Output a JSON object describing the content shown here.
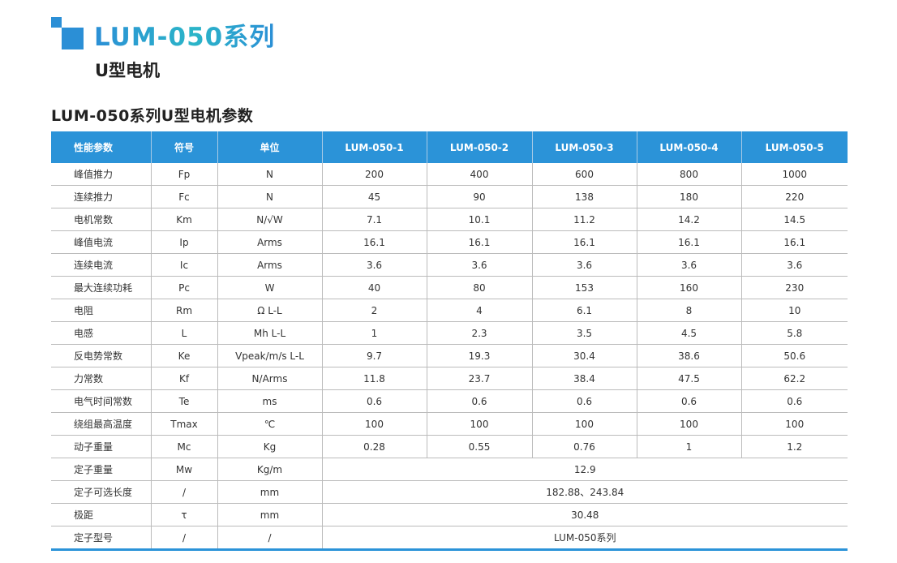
{
  "header": {
    "title": "LUM-050系列",
    "subtitle": "U型电机"
  },
  "section_title": "LUM-050系列U型电机参数",
  "colors": {
    "accent": "#2b93d8",
    "title_gradient_end": "#2bb5c8"
  },
  "table": {
    "columns": [
      "性能参数",
      "符号",
      "单位",
      "LUM-050-1",
      "LUM-050-2",
      "LUM-050-3",
      "LUM-050-4",
      "LUM-050-5"
    ],
    "rows": [
      [
        "峰值推力",
        "Fp",
        "N",
        "200",
        "400",
        "600",
        "800",
        "1000"
      ],
      [
        "连续推力",
        "Fc",
        "N",
        "45",
        "90",
        "138",
        "180",
        "220"
      ],
      [
        "电机常数",
        "Km",
        "N/√W",
        "7.1",
        "10.1",
        "11.2",
        "14.2",
        "14.5"
      ],
      [
        "峰值电流",
        "Ip",
        "Arms",
        "16.1",
        "16.1",
        "16.1",
        "16.1",
        "16.1"
      ],
      [
        "连续电流",
        "Ic",
        "Arms",
        "3.6",
        "3.6",
        "3.6",
        "3.6",
        "3.6"
      ],
      [
        "最大连续功耗",
        "Pc",
        "W",
        "40",
        "80",
        "153",
        "160",
        "230"
      ],
      [
        "电阻",
        "Rm",
        "Ω L-L",
        "2",
        "4",
        "6.1",
        "8",
        "10"
      ],
      [
        "电感",
        "L",
        "Mh L-L",
        "1",
        "2.3",
        "3.5",
        "4.5",
        "5.8"
      ],
      [
        "反电势常数",
        "Ke",
        "Vpeak/m/s L-L",
        "9.7",
        "19.3",
        "30.4",
        "38.6",
        "50.6"
      ],
      [
        "力常数",
        "Kf",
        "N/Arms",
        "11.8",
        "23.7",
        "38.4",
        "47.5",
        "62.2"
      ],
      [
        "电气时间常数",
        "Te",
        "ms",
        "0.6",
        "0.6",
        "0.6",
        "0.6",
        "0.6"
      ],
      [
        "绕组最高温度",
        "Tmax",
        "℃",
        "100",
        "100",
        "100",
        "100",
        "100"
      ],
      [
        "动子重量",
        "Mc",
        "Kg",
        "0.28",
        "0.55",
        "0.76",
        "1",
        "1.2"
      ],
      [
        "定子重量",
        "Mw",
        "Kg/m",
        "12.9"
      ],
      [
        "定子可选长度",
        "/",
        "mm",
        "182.88、243.84"
      ],
      [
        "极距",
        "τ",
        "mm",
        "30.48"
      ],
      [
        "定子型号",
        "/",
        "/",
        "LUM-050系列"
      ]
    ]
  }
}
